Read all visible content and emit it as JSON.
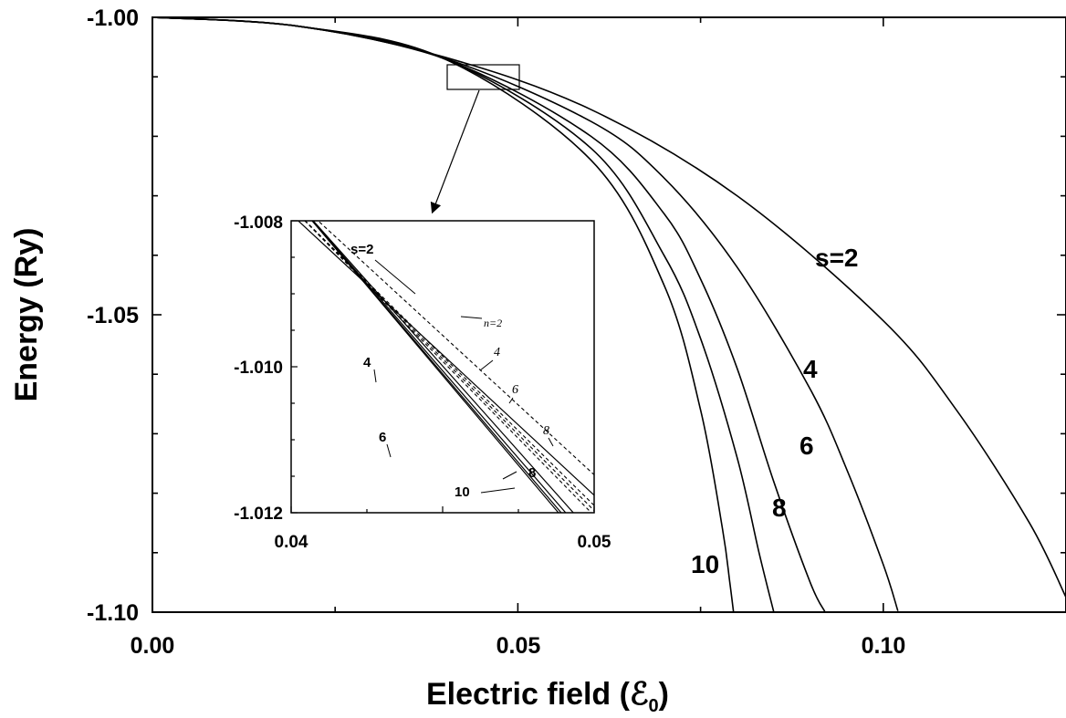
{
  "chart_data": [
    {
      "type": "line",
      "xlabel": "Electric field (ℰ",
      "xlabel_subscript": "0",
      "xlabel_close": ")",
      "ylabel": "Energy (Ry)",
      "xlim": [
        0.0,
        0.125
      ],
      "ylim": [
        -1.1,
        -1.0
      ],
      "xticks": [
        "0.00",
        "0.05",
        "0.10"
      ],
      "yticks": [
        "-1.00",
        "-1.05",
        "-1.10"
      ],
      "xtick_values": [
        0.0,
        0.05,
        0.1
      ],
      "ytick_values": [
        -1.0,
        -1.05,
        -1.1
      ],
      "grid": false,
      "series": [
        {
          "name": "s=2",
          "x": [
            0.0,
            0.02,
            0.04,
            0.06,
            0.08,
            0.1,
            0.11,
            0.12,
            0.125
          ],
          "y": [
            -1.0,
            -1.0015,
            -1.0067,
            -1.0155,
            -1.03,
            -1.051,
            -1.066,
            -1.085,
            -1.0975
          ]
        },
        {
          "name": "4",
          "x": [
            0.0,
            0.02,
            0.04,
            0.06,
            0.07,
            0.08,
            0.09,
            0.095,
            0.1,
            0.102
          ],
          "y": [
            -1.0,
            -1.0015,
            -1.0069,
            -1.0175,
            -1.027,
            -1.042,
            -1.0625,
            -1.076,
            -1.092,
            -1.0998
          ]
        },
        {
          "name": "6",
          "x": [
            0.0,
            0.02,
            0.04,
            0.06,
            0.07,
            0.075,
            0.08,
            0.085,
            0.09,
            0.092
          ],
          "y": [
            -1.0,
            -1.0015,
            -1.007,
            -1.02,
            -1.033,
            -1.044,
            -1.059,
            -1.078,
            -1.095,
            -1.0999
          ]
        },
        {
          "name": "8",
          "x": [
            0.0,
            0.02,
            0.04,
            0.06,
            0.07,
            0.075,
            0.08,
            0.083,
            0.085
          ],
          "y": [
            -1.0,
            -1.0015,
            -1.007,
            -1.022,
            -1.04,
            -1.054,
            -1.074,
            -1.09,
            -1.0999
          ]
        },
        {
          "name": "10",
          "x": [
            0.0,
            0.02,
            0.04,
            0.06,
            0.07,
            0.075,
            0.078,
            0.079,
            0.0795
          ],
          "y": [
            -1.0,
            -1.0015,
            -1.007,
            -1.024,
            -1.045,
            -1.066,
            -1.086,
            -1.095,
            -1.0999
          ]
        }
      ],
      "curve_labels": [
        "s=2",
        "4",
        "6",
        "8",
        "10"
      ]
    },
    {
      "type": "line",
      "xlim": [
        0.04,
        0.05
      ],
      "ylim": [
        -1.012,
        -1.008
      ],
      "xticks": [
        "0.04",
        "0.05"
      ],
      "yticks": [
        "-1.008",
        "-1.010",
        "-1.012"
      ],
      "xtick_values": [
        0.04,
        0.05
      ],
      "ytick_values": [
        -1.008,
        -1.01,
        -1.012
      ],
      "solid_series": [
        {
          "name": "s=2",
          "x": [
            0.04,
            0.05
          ],
          "y": [
            -1.00791,
            -1.01176
          ]
        },
        {
          "name": "4",
          "x": [
            0.04,
            0.05
          ],
          "y": [
            -1.00766,
            -1.01232
          ]
        },
        {
          "name": "6",
          "x": [
            0.04,
            0.05
          ],
          "y": [
            -1.00766,
            -1.01245
          ]
        },
        {
          "name": "8",
          "x": [
            0.04,
            0.05
          ],
          "y": [
            -1.00766,
            -1.01253
          ]
        },
        {
          "name": "10",
          "x": [
            0.04,
            0.05
          ],
          "y": [
            -1.00766,
            -1.01258
          ]
        }
      ],
      "dashed_series": [
        {
          "name": "n=2",
          "x": [
            0.04,
            0.05
          ],
          "y": [
            -1.00766,
            -1.01148
          ]
        },
        {
          "name": "4",
          "x": [
            0.04,
            0.05
          ],
          "y": [
            -1.00781,
            -1.0119
          ]
        },
        {
          "name": "6",
          "x": [
            0.04,
            0.05
          ],
          "y": [
            -1.00781,
            -1.01197
          ]
        },
        {
          "name": "8",
          "x": [
            0.04,
            0.05
          ],
          "y": [
            -1.00781,
            -1.01204
          ]
        }
      ],
      "solid_labels": [
        "s=2",
        "4",
        "6",
        "8",
        "10"
      ],
      "dashed_labels": [
        "n=2",
        "4",
        "6",
        "8"
      ]
    }
  ]
}
